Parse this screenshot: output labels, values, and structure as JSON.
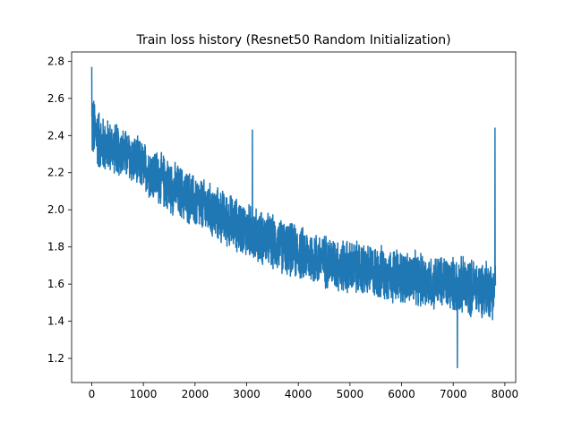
{
  "chart_data": {
    "type": "line",
    "title": "Train loss history (Resnet50 Random Initialization)",
    "xlabel": "",
    "ylabel": "",
    "xlim": [
      -390,
      8210
    ],
    "ylim": [
      1.07,
      2.85
    ],
    "x_ticks": [
      0,
      1000,
      2000,
      3000,
      4000,
      5000,
      6000,
      7000,
      8000
    ],
    "x_tick_labels": [
      "0",
      "1000",
      "2000",
      "3000",
      "4000",
      "5000",
      "6000",
      "7000",
      "8000"
    ],
    "y_ticks": [
      1.2,
      1.4,
      1.6,
      1.8,
      2.0,
      2.2,
      2.4,
      2.6,
      2.8
    ],
    "y_tick_labels": [
      "1.2",
      "1.4",
      "1.6",
      "1.8",
      "2.0",
      "2.2",
      "2.4",
      "2.6",
      "2.8"
    ],
    "grid": false,
    "legend": false,
    "series_color": "#1f77b4",
    "series": [
      {
        "x": [
          0,
          200,
          400,
          600,
          800,
          1000,
          1200,
          1400,
          1600,
          1800,
          2000,
          2200,
          2400,
          2600,
          2800,
          3000,
          3200,
          3400,
          3600,
          3800,
          4000,
          4200,
          4400,
          4600,
          4800,
          5000,
          5200,
          5400,
          5600,
          5800,
          6000,
          6200,
          6400,
          6600,
          6800,
          7000,
          7200,
          7400,
          7600,
          7800
        ],
        "values": [
          2.45,
          2.35,
          2.34,
          2.31,
          2.27,
          2.23,
          2.19,
          2.15,
          2.11,
          2.08,
          2.04,
          2.01,
          1.98,
          1.95,
          1.92,
          1.89,
          1.86,
          1.84,
          1.81,
          1.79,
          1.77,
          1.75,
          1.73,
          1.72,
          1.7,
          1.69,
          1.68,
          1.67,
          1.66,
          1.65,
          1.64,
          1.63,
          1.62,
          1.61,
          1.61,
          1.6,
          1.59,
          1.58,
          1.58,
          1.57
        ],
        "spread": [
          0.2,
          0.17,
          0.15,
          0.15,
          0.15,
          0.15,
          0.16,
          0.16,
          0.16,
          0.16,
          0.16,
          0.16,
          0.16,
          0.16,
          0.16,
          0.16,
          0.16,
          0.16,
          0.16,
          0.16,
          0.16,
          0.16,
          0.16,
          0.16,
          0.16,
          0.16,
          0.16,
          0.16,
          0.16,
          0.16,
          0.16,
          0.16,
          0.16,
          0.16,
          0.16,
          0.16,
          0.17,
          0.17,
          0.17,
          0.17
        ],
        "total_steps": 7820
      }
    ],
    "annotable_peaks": [
      {
        "x": 0,
        "y": 2.77
      },
      {
        "x": 3110,
        "y": 2.43
      },
      {
        "x": 7810,
        "y": 2.44
      },
      {
        "x": 7080,
        "y": 1.15
      }
    ]
  }
}
